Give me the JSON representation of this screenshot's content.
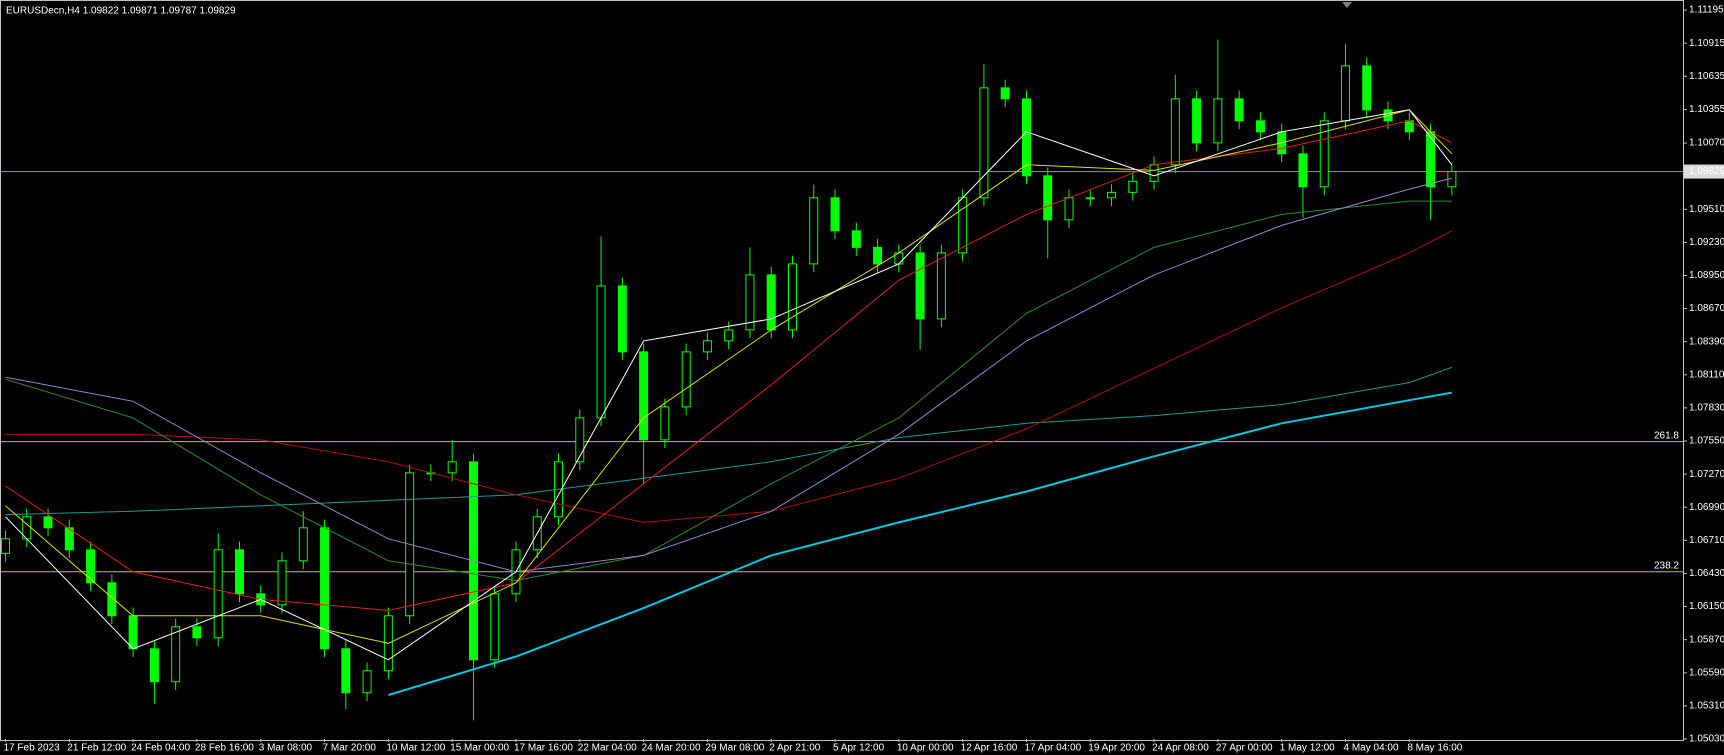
{
  "chart_data": {
    "type": "candlestick",
    "title": "EURUSDecn,H4  1.09822 1.09871 1.09787 1.09829",
    "categories": [
      "17 Feb 2023",
      null,
      null,
      "21 Feb 12:00",
      null,
      null,
      "24 Feb 04:00",
      null,
      null,
      "28 Feb 16:00",
      null,
      null,
      "3 Mar 08:00",
      null,
      null,
      "7 Mar 20:00",
      null,
      null,
      "10 Mar 12:00",
      null,
      null,
      "15 Mar 00:00",
      null,
      null,
      "17 Mar 16:00",
      null,
      null,
      "22 Mar 04:00",
      null,
      null,
      "24 Mar 20:00",
      null,
      null,
      "29 Mar 08:00",
      null,
      null,
      "2 Apr 21:00",
      null,
      null,
      "5 Apr 12:00",
      null,
      null,
      "10 Apr 00:00",
      null,
      null,
      "12 Apr 16:00",
      null,
      null,
      "17 Apr 04:00",
      null,
      null,
      "19 Apr 20:00",
      null,
      null,
      "24 Apr 08:00",
      null,
      null,
      "27 Apr 00:00",
      null,
      null,
      "1 May 12:00",
      null,
      null,
      "4 May 04:00",
      null,
      null,
      "8 May 16:00",
      null,
      null
    ],
    "ohlc": {
      "open": [
        1.066,
        1.06723,
        1.06909,
        1.06816,
        1.0663,
        1.06351,
        1.06072,
        1.05793,
        1.05514,
        1.05979,
        1.05886,
        1.0663,
        1.06258,
        1.06165,
        1.06537,
        1.06816,
        1.05793,
        1.05421,
        1.05607,
        1.06072,
        1.07281,
        1.07281,
        1.07374,
        1.057,
        1.06258,
        1.0663,
        1.06909,
        1.07374,
        1.07746,
        1.08862,
        1.08304,
        1.0756,
        1.07839,
        1.08304,
        1.08397,
        1.0849,
        1.08955,
        1.0849,
        1.09048,
        1.09607,
        1.09328,
        1.09188,
        1.09048,
        1.09141,
        1.08583,
        1.09141,
        1.09607,
        1.10537,
        1.10444,
        1.09793,
        1.09421,
        1.09607,
        1.09607,
        1.09653,
        1.09746,
        1.09886,
        1.10444,
        1.10072,
        1.10444,
        1.10258,
        1.10165,
        1.09979,
        1.097,
        1.10258,
        1.10723,
        1.10351,
        1.10258,
        1.10165,
        1.097
      ],
      "high": [
        1.06793,
        1.06979,
        1.06979,
        1.06886,
        1.067,
        1.06421,
        1.06142,
        1.05863,
        1.06049,
        1.06049,
        1.0677,
        1.067,
        1.06328,
        1.06607,
        1.06956,
        1.06886,
        1.05863,
        1.05677,
        1.06142,
        1.07351,
        1.07351,
        1.0756,
        1.07444,
        1.06328,
        1.067,
        1.06979,
        1.07444,
        1.07816,
        1.09281,
        1.08932,
        1.08374,
        1.07909,
        1.08374,
        1.08467,
        1.0856,
        1.09188,
        1.09025,
        1.09118,
        1.09718,
        1.09677,
        1.09398,
        1.09258,
        1.09211,
        1.09211,
        1.09211,
        1.09677,
        1.10741,
        1.10607,
        1.10514,
        1.09863,
        1.09677,
        1.09677,
        1.09723,
        1.09816,
        1.09956,
        1.10648,
        1.10514,
        1.10946,
        1.10514,
        1.10328,
        1.10235,
        1.10049,
        1.10328,
        1.10909,
        1.10793,
        1.10421,
        1.10328,
        1.10235,
        1.09899
      ],
      "low": [
        1.0653,
        1.06653,
        1.06746,
        1.0656,
        1.06281,
        1.06002,
        1.05723,
        1.0533,
        1.05444,
        1.05816,
        1.05816,
        1.06188,
        1.06095,
        1.06095,
        1.06467,
        1.05723,
        1.05281,
        1.05351,
        1.05537,
        1.06002,
        1.07211,
        1.07211,
        1.05188,
        1.0563,
        1.06188,
        1.0656,
        1.06839,
        1.07304,
        1.07676,
        1.08234,
        1.07188,
        1.0749,
        1.07769,
        1.08234,
        1.08327,
        1.0842,
        1.0842,
        1.0842,
        1.08978,
        1.09258,
        1.09118,
        1.08978,
        1.08978,
        1.08323,
        1.08513,
        1.09071,
        1.09537,
        1.10374,
        1.09723,
        1.09095,
        1.09351,
        1.09537,
        1.09537,
        1.09583,
        1.09676,
        1.09816,
        1.10002,
        1.10002,
        1.10188,
        1.10095,
        1.09909,
        1.09439,
        1.0963,
        1.10188,
        1.10281,
        1.10188,
        1.10095,
        1.09421,
        1.0963
      ],
      "close": [
        1.06723,
        1.06909,
        1.06816,
        1.0663,
        1.06351,
        1.06072,
        1.05793,
        1.05514,
        1.05979,
        1.05886,
        1.0663,
        1.06258,
        1.06165,
        1.06537,
        1.06816,
        1.05793,
        1.05421,
        1.05607,
        1.06072,
        1.07281,
        1.07281,
        1.07374,
        1.057,
        1.06258,
        1.0663,
        1.06909,
        1.07374,
        1.07746,
        1.08862,
        1.08304,
        1.0756,
        1.07839,
        1.08304,
        1.08397,
        1.0849,
        1.08955,
        1.0849,
        1.09048,
        1.09607,
        1.09328,
        1.09188,
        1.09048,
        1.09141,
        1.08583,
        1.09141,
        1.09607,
        1.10537,
        1.10444,
        1.09793,
        1.09421,
        1.09607,
        1.09607,
        1.09653,
        1.09746,
        1.09886,
        1.10444,
        1.10072,
        1.10444,
        1.10258,
        1.10165,
        1.09979,
        1.097,
        1.10258,
        1.10723,
        1.10351,
        1.10258,
        1.10165,
        1.097,
        1.09829
      ]
    },
    "bull_color": "#000000",
    "bear_color": "#00ff00",
    "candle_outline": "#00ff00",
    "ma_x": [
      0,
      6,
      12,
      18,
      24,
      30,
      36,
      42,
      48,
      54,
      60,
      66,
      68
    ],
    "moving_averages": [
      {
        "color": "#1a9a9a",
        "width": 1,
        "values": [
          1.06928,
          1.06956,
          1.07002,
          1.07049,
          1.07095,
          1.07235,
          1.07374,
          1.07579,
          1.077,
          1.07765,
          1.07858,
          1.08044,
          1.08174
        ]
      },
      {
        "color": "#b01010",
        "width": 1,
        "values": [
          1.07607,
          1.07607,
          1.0756,
          1.07374,
          1.07095,
          1.06862,
          1.06956,
          1.07235,
          1.07653,
          1.08165,
          1.08676,
          1.09141,
          1.09328
        ]
      },
      {
        "color": "#2e8b2e",
        "width": 1,
        "values": [
          1.08072,
          1.07746,
          1.07095,
          1.06537,
          1.0637,
          1.06583,
          1.07188,
          1.07746,
          1.0863,
          1.09188,
          1.09467,
          1.09579,
          1.09579
        ]
      },
      {
        "color": "#9a7fd0",
        "width": 1,
        "values": [
          1.0809,
          1.07886,
          1.07281,
          1.06723,
          1.06444,
          1.06583,
          1.06956,
          1.07607,
          1.08397,
          1.08955,
          1.09374,
          1.09681,
          1.09774
        ]
      },
      {
        "color": "#00c8e0",
        "width": 2,
        "values": [
          null,
          null,
          null,
          1.05402,
          1.05728,
          1.06137,
          1.06583,
          1.06862,
          1.07123,
          1.07421,
          1.077,
          1.07895,
          1.0796
        ]
      },
      {
        "color": "#e02020",
        "width": 1,
        "values": [
          1.0717,
          1.06444,
          1.06211,
          1.06118,
          1.06351,
          1.07188,
          1.08025,
          1.08909,
          1.09467,
          1.09886,
          1.10025,
          1.10258,
          1.10072
        ]
      },
      {
        "color": "#e0e000",
        "width": 1,
        "values": [
          1.07002,
          1.06072,
          1.06072,
          1.05839,
          1.06351,
          1.07746,
          1.0849,
          1.09141,
          1.09886,
          1.09839,
          1.10072,
          1.10351,
          1.09979
        ]
      },
      {
        "color": "#ffffff",
        "width": 1,
        "values": [
          1.06909,
          1.05793,
          1.06211,
          1.057,
          1.06444,
          1.08397,
          1.08583,
          1.09048,
          1.10165,
          1.09793,
          1.10165,
          1.10351,
          1.09886
        ]
      }
    ],
    "levels": [
      {
        "label": "261.8",
        "price": 1.07545,
        "color": "#c8c800"
      },
      {
        "label": "238.2",
        "price": 1.06444,
        "color": "#c8c800"
      }
    ],
    "last_price": 1.09829,
    "ylim": [
      1.0503,
      1.1128
    ],
    "yticks": [
      1.11195,
      1.10915,
      1.10635,
      1.10355,
      {
        "value": 1.1007,
        "label": "1.10070"
      },
      {
        "value": 1.0951,
        "label": "1.09510"
      },
      {
        "value": 1.0923,
        "label": "1.09230"
      },
      {
        "value": 1.0895,
        "label": "1.08950"
      },
      {
        "value": 1.0867,
        "label": "1.08670"
      },
      {
        "value": 1.0839,
        "label": "1.08390"
      },
      {
        "value": 1.0811,
        "label": "1.08110"
      },
      {
        "value": 1.0783,
        "label": "1.07830"
      },
      {
        "value": 1.0755,
        "label": "1.07550"
      },
      {
        "value": 1.0727,
        "label": "1.07270"
      },
      {
        "value": 1.0699,
        "label": "1.06990"
      },
      {
        "value": 1.0671,
        "label": "1.06710"
      },
      {
        "value": 1.0643,
        "label": "1.06430"
      },
      {
        "value": 1.0615,
        "label": "1.06150"
      },
      {
        "value": 1.0587,
        "label": "1.05870"
      },
      {
        "value": 1.0559,
        "label": "1.05590"
      },
      {
        "value": 1.0531,
        "label": "1.05310"
      },
      {
        "value": 1.0503,
        "label": "1.05030"
      }
    ],
    "grid": true
  }
}
